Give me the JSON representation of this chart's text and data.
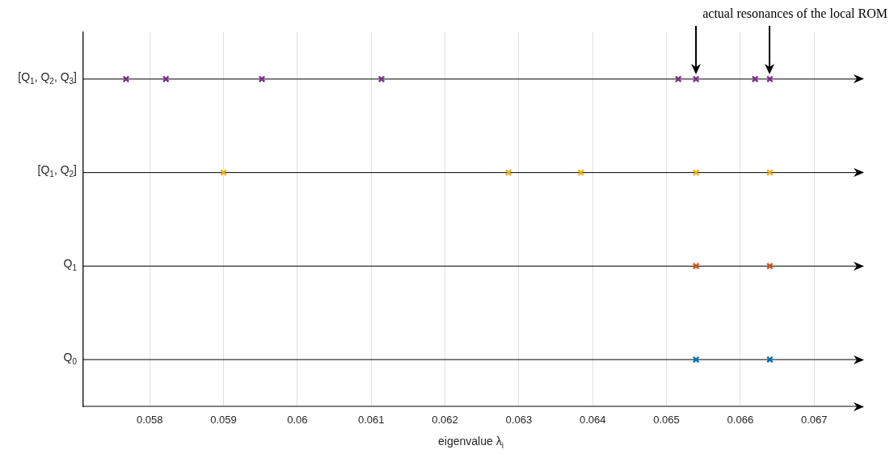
{
  "chart_data": {
    "type": "scatter",
    "orientation": "horizontal",
    "xlabel": "eigenvalue λ$_{i}$",
    "annotations": [
      "actual resonances of the local ROM"
    ],
    "categories": [
      "[Q$_{1}$, Q$_{2}$, Q$_{3}$]",
      "[Q$_{1}$, Q$_{2}$]",
      "Q$_{1}$",
      "Q$_{0}$"
    ],
    "xlim": [
      0.0571,
      0.0676
    ],
    "xticks": [
      0.058,
      0.059,
      0.06,
      0.061,
      0.062,
      0.063,
      0.064,
      0.065,
      0.066,
      0.067
    ],
    "grid": true,
    "legend": false,
    "marker": "cross",
    "series": [
      {
        "color": "#0072bd",
        "x": [
          "Q$_{0}$",
          "Q$_{0}$"
        ],
        "values": [
          0.0654,
          0.0664
        ]
      },
      {
        "color": "#d95319",
        "x": [
          "Q$_{1}$",
          "Q$_{1}$"
        ],
        "values": [
          0.0654,
          0.0664
        ]
      },
      {
        "color": "#edb120",
        "x": [
          "[Q$_{1}$, Q$_{2}$]",
          "[Q$_{1}$, Q$_{2}$]",
          "[Q$_{1}$, Q$_{2}$]",
          "[Q$_{1}$, Q$_{2}$]",
          "[Q$_{1}$, Q$_{2}$]"
        ],
        "values": [
          0.059,
          0.06286,
          0.06384,
          0.0654,
          0.0664
        ]
      },
      {
        "color": "#7e2f8e",
        "x": [
          "[Q$_{1}$, Q$_{2}$, Q$_{3}$]",
          "[Q$_{1}$, Q$_{2}$, Q$_{3}$]",
          "[Q$_{1}$, Q$_{2}$, Q$_{3}$]",
          "[Q$_{1}$, Q$_{2}$, Q$_{3}$]",
          "[Q$_{1}$, Q$_{2}$, Q$_{3}$]",
          "[Q$_{1}$, Q$_{2}$, Q$_{3}$]",
          "[Q$_{1}$, Q$_{2}$, Q$_{3}$]",
          "[Q$_{1}$, Q$_{2}$, Q$_{3}$]"
        ],
        "values": [
          0.05768,
          0.05822,
          0.05952,
          0.06114,
          0.06516,
          0.0654,
          0.0662,
          0.0664
        ]
      }
    ]
  }
}
